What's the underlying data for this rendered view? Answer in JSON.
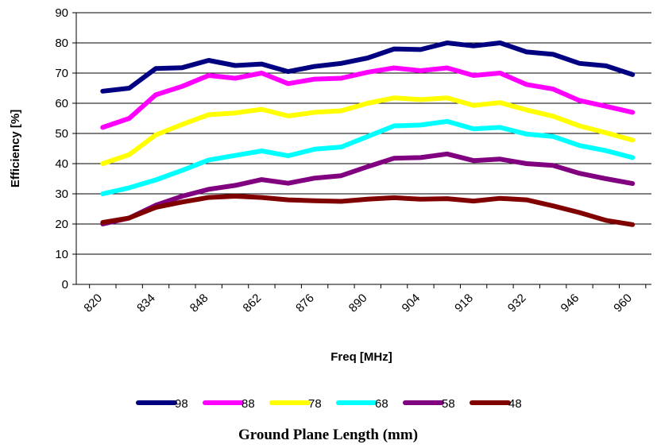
{
  "chart_data": {
    "type": "line",
    "xlabel": "Freq [MHz]",
    "ylabel": "Efficiency [%]",
    "ylim": [
      0,
      90
    ],
    "yticks": [
      "0",
      "10",
      "20",
      "30",
      "40",
      "50",
      "60",
      "70",
      "80",
      "90"
    ],
    "xticks": [
      "820",
      "834",
      "848",
      "862",
      "876",
      "890",
      "904",
      "918",
      "932",
      "946",
      "960"
    ],
    "grid": "horizontal",
    "legend_position": "bottom",
    "legend_title": "Ground Plane Length (mm)",
    "x": [
      824,
      831,
      838,
      845,
      852,
      859,
      866,
      873,
      880,
      887,
      894,
      901,
      908,
      915,
      922,
      929,
      936,
      943,
      950,
      957,
      964
    ],
    "series": [
      {
        "name": "98",
        "color": "#000080",
        "values": [
          64,
          65,
          71.5,
          71.8,
          74.2,
          72.5,
          73,
          70.5,
          72.2,
          73.2,
          75,
          78,
          77.8,
          80,
          79,
          80,
          77,
          76.2,
          73.2,
          72.4,
          69.5
        ]
      },
      {
        "name": "88",
        "color": "#ff00ff",
        "values": [
          52,
          55,
          62.8,
          65.6,
          69.2,
          68.3,
          70,
          66.5,
          68,
          68.3,
          70.3,
          71.7,
          70.8,
          71.7,
          69.2,
          70,
          66.2,
          64.7,
          60.9,
          59,
          57
        ]
      },
      {
        "name": "78",
        "color": "#ffff00",
        "values": [
          40,
          43,
          49.5,
          53,
          56.2,
          56.8,
          58,
          55.8,
          57,
          57.5,
          60,
          61.8,
          61.2,
          61.8,
          59.3,
          60.2,
          57.8,
          55.7,
          52.5,
          50.2,
          47.8
        ]
      },
      {
        "name": "68",
        "color": "#00ffff",
        "values": [
          30,
          32,
          34.6,
          37.8,
          41.2,
          42.7,
          44.2,
          42.6,
          44.8,
          45.5,
          49,
          52.5,
          52.8,
          54,
          51.5,
          52,
          49.8,
          49,
          46,
          44.3,
          42
        ]
      },
      {
        "name": "58",
        "color": "#800080",
        "values": [
          20,
          22,
          26.2,
          29.2,
          31.5,
          32.8,
          34.7,
          33.5,
          35.2,
          36,
          39,
          41.8,
          42,
          43.2,
          41,
          41.5,
          40,
          39.4,
          36.8,
          35,
          33.4
        ]
      },
      {
        "name": "48",
        "color": "#800000",
        "values": [
          20.5,
          22,
          25.5,
          27.3,
          28.8,
          29.2,
          28.8,
          28,
          27.7,
          27.5,
          28.2,
          28.7,
          28.2,
          28.4,
          27.6,
          28.5,
          28,
          26,
          23.8,
          21.2,
          19.8
        ]
      }
    ]
  }
}
